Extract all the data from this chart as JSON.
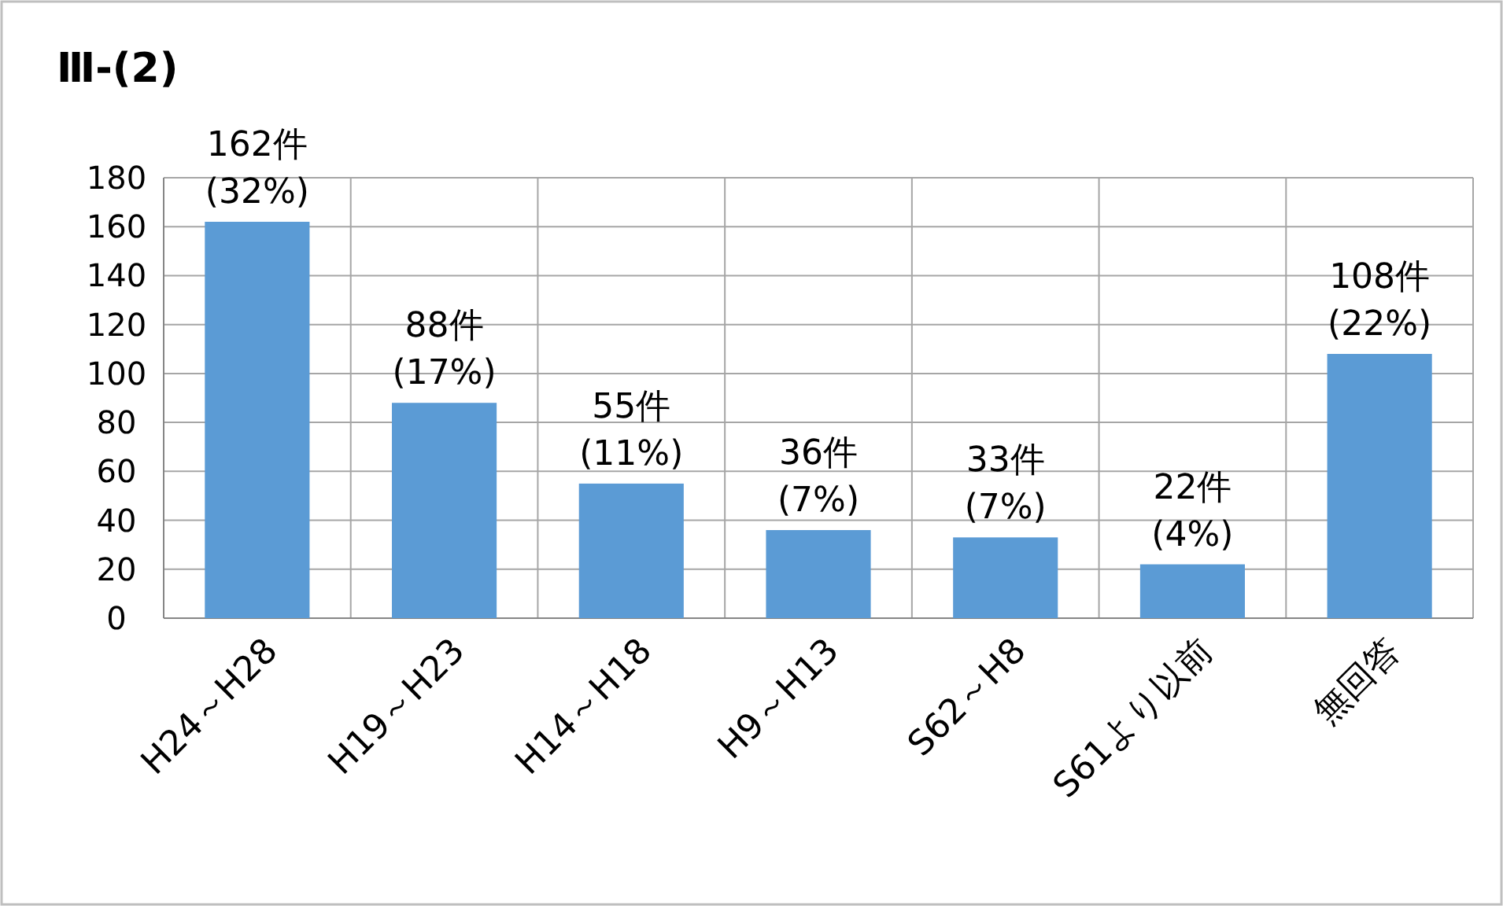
{
  "chart_data": {
    "type": "bar",
    "title": "Ⅲ-(2)",
    "categories": [
      "H24～H28",
      "H19～H23",
      "H14～H18",
      "H9～H13",
      "S62～H8",
      "S61より以前",
      "無回答"
    ],
    "values": [
      162,
      88,
      55,
      36,
      33,
      22,
      108
    ],
    "value_labels": [
      "162件\n(32%)",
      "88件\n(17%)",
      "55件\n(11%)",
      "36件\n(7%)",
      "33件\n(7%)",
      "22件\n(4%)",
      "108件\n(22%)"
    ],
    "color": "#5b9bd5",
    "ylim": [
      0,
      180
    ],
    "yticks": [
      0,
      20,
      40,
      60,
      80,
      100,
      120,
      140,
      160,
      180
    ],
    "grid": true
  }
}
